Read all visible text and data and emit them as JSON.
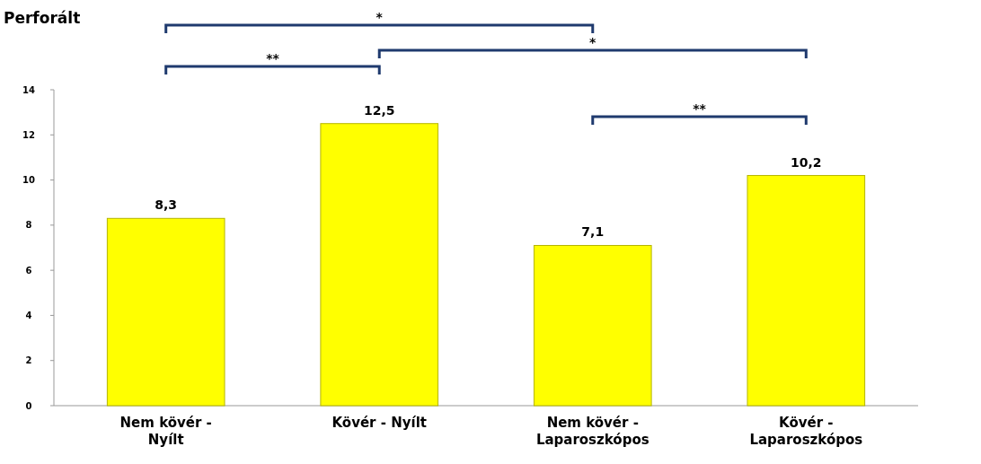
{
  "chart_data": {
    "type": "bar",
    "title": "Perforált",
    "categories": [
      "Nem kövér - Nyílt",
      "Kövér - Nyílt",
      "Nem kövér - Laparoszkópos",
      "Kövér - Laparoszkópos"
    ],
    "values": [
      8.3,
      12.5,
      7.1,
      10.2
    ],
    "value_labels": [
      "8,3",
      "12,5",
      "7,1",
      "10,2"
    ],
    "color": "#ffff00",
    "ylim": [
      0,
      14
    ],
    "yticks": [
      0,
      2,
      4,
      6,
      8,
      10,
      12,
      14
    ],
    "grid": false,
    "annotations": [
      "*",
      "**",
      "*",
      "**"
    ]
  }
}
